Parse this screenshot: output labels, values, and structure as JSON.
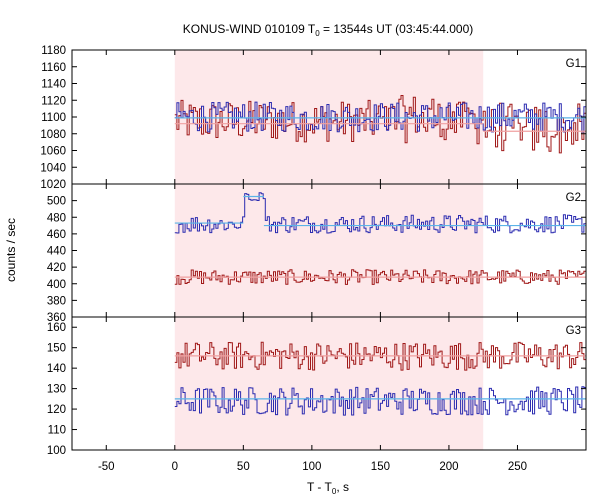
{
  "chart_data": {
    "type": "line",
    "title": "KONUS-WIND 010109 T",
    "title_sub": "0",
    "title_rest": " = 13544s UT (03:45:44.000)",
    "xlabel": "T - T",
    "xlabel_sub": "0",
    "xlabel_rest": ", s",
    "ylabel": "counts / sec",
    "xlim": [
      -75,
      300
    ],
    "x_ticks": [
      -50,
      0,
      50,
      100,
      150,
      200,
      250
    ],
    "x_tick_labels": [
      "-50",
      "0",
      "50",
      "100",
      "150",
      "200",
      "250"
    ],
    "highlight_interval": [
      0,
      225
    ],
    "colors": {
      "highlight": "#fde8ea",
      "blue_series": "#2b2bb0",
      "red_series": "#a01818",
      "blue_fit": "#5ab4e8",
      "red_fit": "#f0a0a0"
    },
    "panels": [
      {
        "label": "G1",
        "ylim": [
          1020,
          1180
        ],
        "y_ticks": [
          1020,
          1040,
          1060,
          1080,
          1100,
          1120,
          1140,
          1160,
          1180
        ],
        "y_tick_labels": [
          "1020",
          "1040",
          "1060",
          "1080",
          "1100",
          "1120",
          "1140",
          "1160",
          "1180"
        ],
        "blue_fit": [
          {
            "x0": 0,
            "x1": 300,
            "y": 1099
          }
        ],
        "red_fit": [
          {
            "x0": 0,
            "x1": 225,
            "y": 1092
          },
          {
            "x0": 225,
            "x1": 300,
            "y": 1083
          }
        ],
        "blue_base": 1100,
        "blue_amp": 18,
        "red_base": 1095,
        "red_amp": 25,
        "red_trend": 0.18
      },
      {
        "label": "G2",
        "ylim": [
          360,
          520
        ],
        "y_ticks": [
          360,
          380,
          400,
          420,
          440,
          460,
          480,
          500,
          520
        ],
        "y_tick_labels": [
          "360",
          "380",
          "400",
          "420",
          "440",
          "460",
          "480",
          "500",
          "520"
        ],
        "blue_fit": [
          {
            "x0": 0,
            "x1": 50,
            "y": 473
          },
          {
            "x0": 50,
            "x1": 65,
            "y": 505
          },
          {
            "x0": 65,
            "x1": 300,
            "y": 470
          }
        ],
        "red_fit": [
          {
            "x0": 0,
            "x1": 300,
            "y": 408
          }
        ],
        "blue_base": 472,
        "blue_amp": 11,
        "red_base": 408,
        "red_amp": 9,
        "red_trend": 0
      },
      {
        "label": "G3",
        "ylim": [
          100,
          165
        ],
        "y_ticks": [
          100,
          110,
          120,
          130,
          140,
          150,
          160
        ],
        "y_tick_labels": [
          "100",
          "110",
          "120",
          "130",
          "140",
          "150",
          "160"
        ],
        "blue_fit": [
          {
            "x0": 0,
            "x1": 300,
            "y": 125
          }
        ],
        "red_fit": [
          {
            "x0": 0,
            "x1": 300,
            "y": 146
          }
        ],
        "blue_base": 124,
        "blue_amp": 7,
        "red_base": 146,
        "red_amp": 7,
        "red_trend": 0
      }
    ]
  }
}
